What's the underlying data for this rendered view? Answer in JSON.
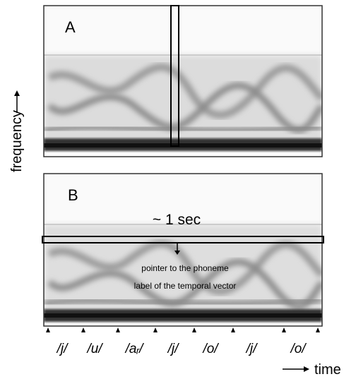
{
  "panels": [
    {
      "label": "A"
    },
    {
      "label": "B",
      "span_label": "~ 1 sec",
      "pointer_text": [
        "pointer to the phoneme",
        "label of the temporal vector"
      ]
    }
  ],
  "axes": {
    "y_label": "frequency",
    "x_label": "time"
  },
  "phonemes": [
    "/j/",
    "/u/",
    "/aᵣ/",
    "/j/",
    "/o/",
    "/j/",
    "/o/"
  ]
}
